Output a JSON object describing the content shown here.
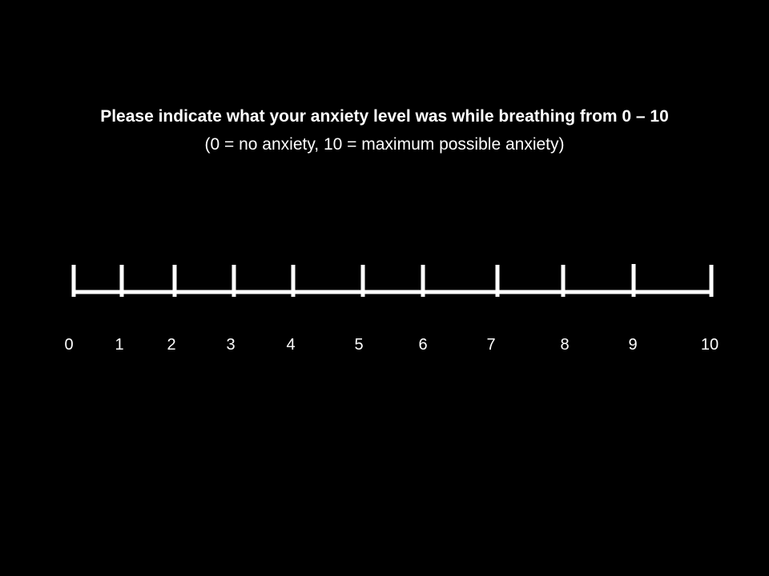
{
  "prompt": {
    "question": "Please indicate what your anxiety level was while breathing from 0 – 10",
    "legend": "(0 = no anxiety, 10 = maximum possible anxiety)"
  },
  "scale": {
    "min": 0,
    "max": 10,
    "labels": [
      "0",
      "1",
      "2",
      "3",
      "4",
      "5",
      "6",
      "7",
      "8",
      "9",
      "10"
    ]
  },
  "colors": {
    "background": "#000000",
    "foreground": "#ffffff"
  }
}
